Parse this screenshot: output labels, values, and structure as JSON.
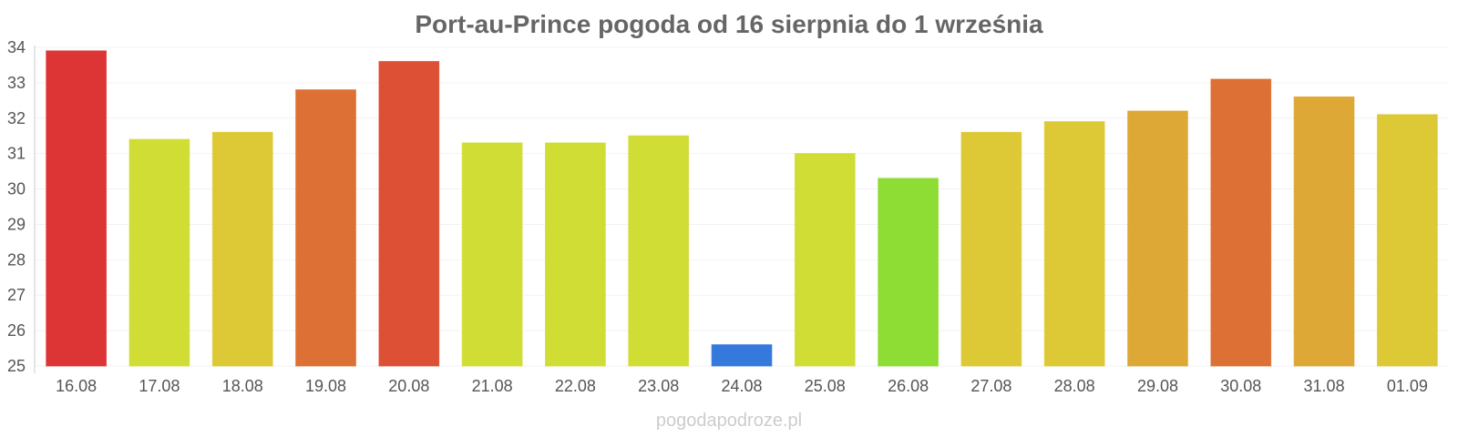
{
  "chart_data": {
    "type": "bar",
    "title": "Port-au-Prince pogoda od 16 sierpnia do 1 września",
    "categories": [
      "16.08",
      "17.08",
      "18.08",
      "19.08",
      "20.08",
      "21.08",
      "22.08",
      "23.08",
      "24.08",
      "25.08",
      "26.08",
      "27.08",
      "28.08",
      "29.08",
      "30.08",
      "31.08",
      "01.09"
    ],
    "values": [
      33.9,
      31.4,
      31.6,
      32.8,
      33.6,
      31.3,
      31.3,
      31.5,
      25.6,
      31.0,
      30.3,
      31.6,
      31.9,
      32.2,
      33.1,
      32.6,
      32.1
    ],
    "colors": [
      "#dd3535",
      "#d0dd35",
      "#ddc835",
      "#dd7035",
      "#dd5035",
      "#d0dd35",
      "#d0dd35",
      "#d0dd35",
      "#3579dd",
      "#d0dd35",
      "#8ddd35",
      "#ddc835",
      "#ddc835",
      "#dda835",
      "#dd7035",
      "#dda835",
      "#ddc835"
    ],
    "ylim": [
      25,
      34
    ],
    "yticks": [
      25,
      26,
      27,
      28,
      29,
      30,
      31,
      32,
      33,
      34
    ],
    "grid": true,
    "legend": "none"
  },
  "watermark": "pogodapodroze.pl"
}
